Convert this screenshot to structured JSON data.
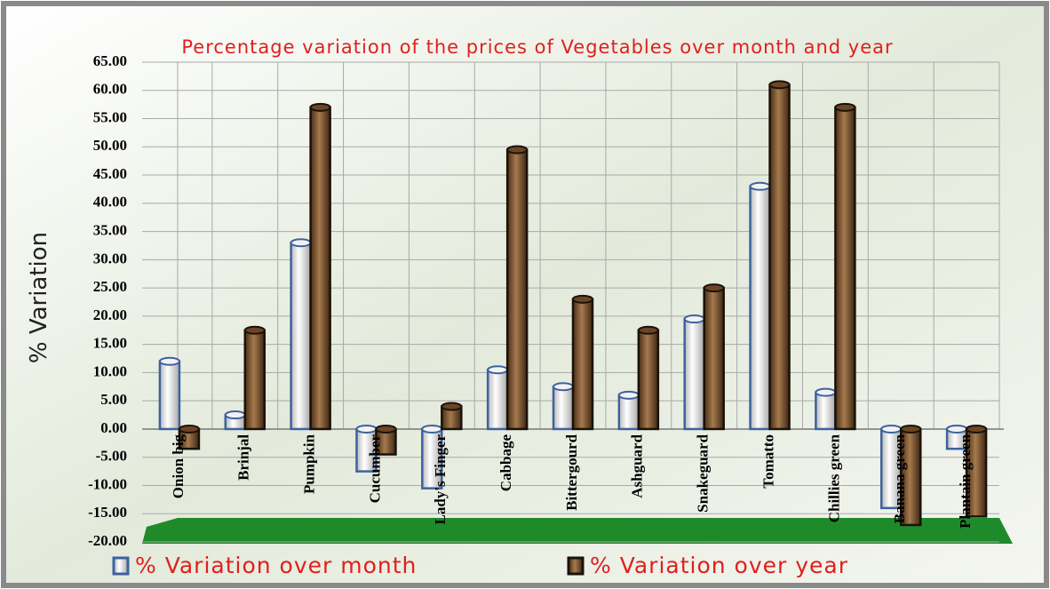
{
  "chart_data": {
    "type": "bar3d",
    "title": "Percentage variation of the prices of Vegetables over month and year",
    "y_label": "% Variation",
    "categories": [
      "Onion big",
      "Brinjal",
      "Pumpkin",
      "Cucumber",
      "Lady's Finger",
      "Cabbage",
      "Bittergourd",
      "Ashguard",
      "Snakeguard",
      "Tomatto",
      "Chillies green",
      "Banana green",
      "Plantain green"
    ],
    "series": [
      {
        "name": "%  Variation over month",
        "color": "#e4e4e4",
        "values": [
          12,
          2.5,
          33,
          -7.5,
          -10.5,
          10.5,
          7.5,
          6,
          19.5,
          43,
          6.5,
          -14,
          -3.5
        ]
      },
      {
        "name": "%  Variation over year",
        "color": "#7a5230",
        "values": [
          -3.5,
          17.5,
          57,
          -4.5,
          4,
          49.5,
          23,
          17.5,
          25,
          61,
          57,
          -17,
          -15.5
        ]
      }
    ],
    "ylim": [
      -20,
      65
    ],
    "yticks": [
      {
        "value": -20,
        "label": "-20.00"
      },
      {
        "value": -15,
        "label": "-15.00"
      },
      {
        "value": -10,
        "label": "-10.00"
      },
      {
        "value": -5,
        "label": "-5.00"
      },
      {
        "value": 0,
        "label": "0.00"
      },
      {
        "value": 5,
        "label": "5.00"
      },
      {
        "value": 10,
        "label": "10.00"
      },
      {
        "value": 15,
        "label": "15.00"
      },
      {
        "value": 20,
        "label": "20.00"
      },
      {
        "value": 25,
        "label": "25.00"
      },
      {
        "value": 30,
        "label": "30.00"
      },
      {
        "value": 35,
        "label": "35.00"
      },
      {
        "value": 40,
        "label": "40.00"
      },
      {
        "value": 45,
        "label": "45.00"
      },
      {
        "value": 50,
        "label": "50.00"
      },
      {
        "value": 55,
        "label": "55.00"
      },
      {
        "value": 60,
        "label": "60.00"
      },
      {
        "value": 65,
        "label": "65.00"
      }
    ],
    "grid": true
  }
}
